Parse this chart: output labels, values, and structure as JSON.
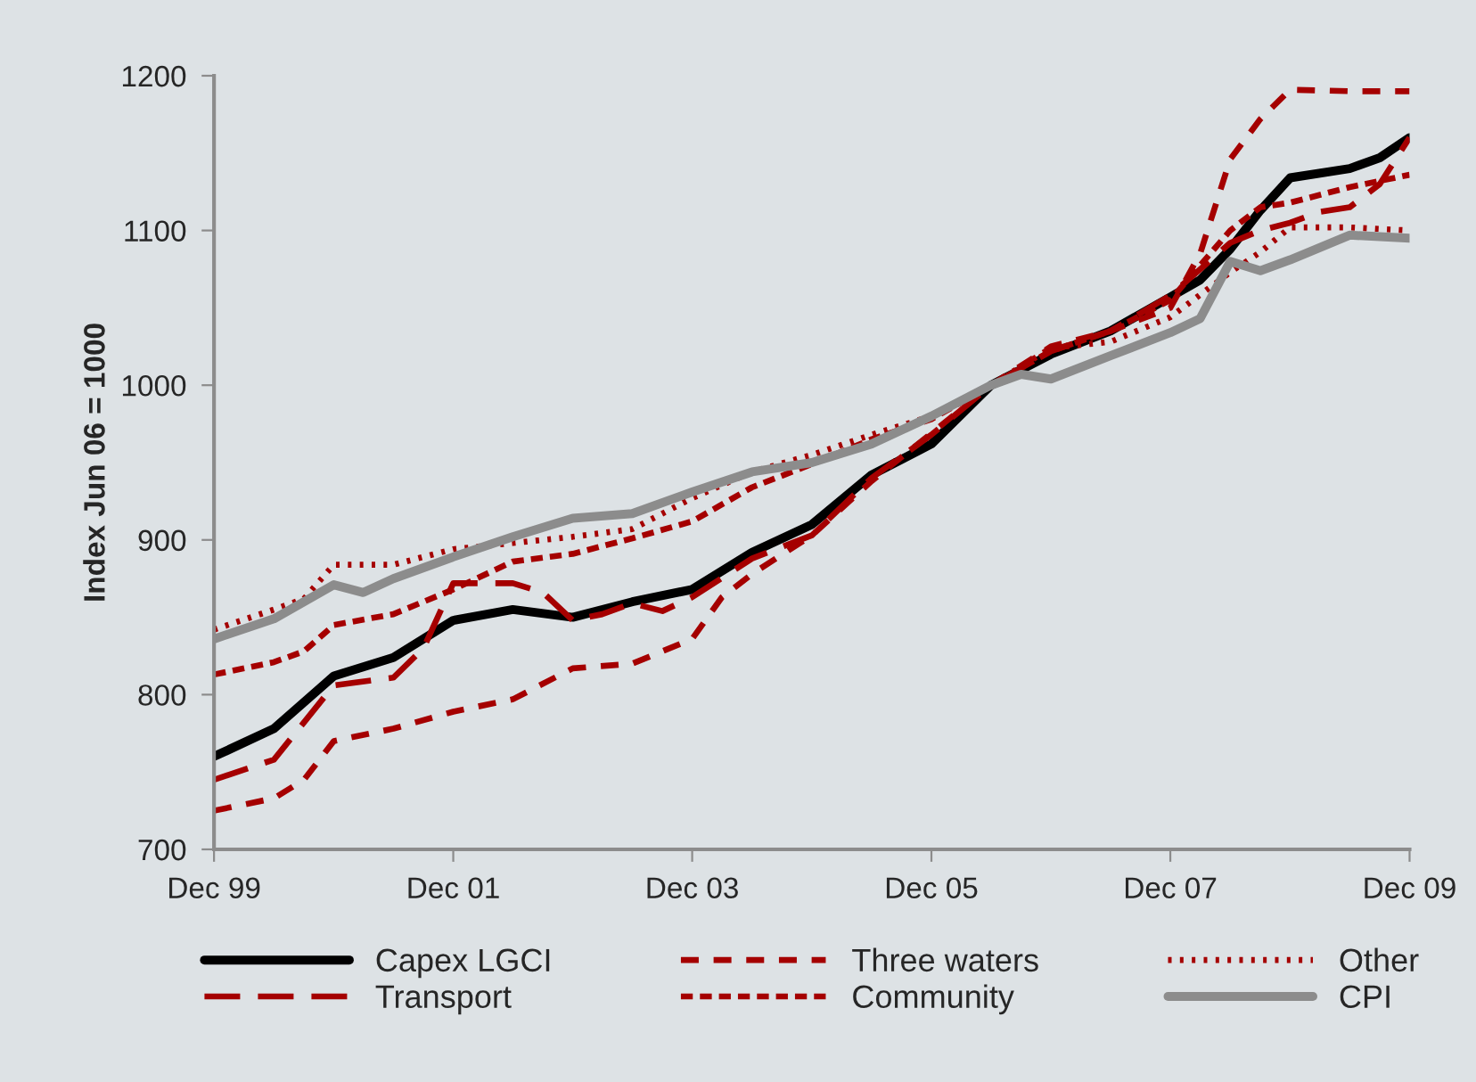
{
  "chart_data": {
    "type": "line",
    "ylabel": "Index Jun 06 = 1000",
    "xlim": [
      "1999-12",
      "2009-12"
    ],
    "xticks": [
      {
        "value": "1999-12",
        "label": "Dec 99"
      },
      {
        "value": "2001-12",
        "label": "Dec 01"
      },
      {
        "value": "2003-12",
        "label": "Dec 03"
      },
      {
        "value": "2005-12",
        "label": "Dec 05"
      },
      {
        "value": "2007-12",
        "label": "Dec 07"
      },
      {
        "value": "2009-12",
        "label": "Dec 09"
      }
    ],
    "ylim": [
      700,
      1200
    ],
    "yticks": [
      700,
      800,
      900,
      1000,
      1100,
      1200
    ],
    "grid": false,
    "legend": "bottom",
    "marker": "none",
    "series": [
      {
        "name": "Capex LGCI",
        "color": "#000000",
        "line_style": "solid",
        "x": [
          "1999-12",
          "2000-06",
          "2000-12",
          "2001-06",
          "2001-12",
          "2002-06",
          "2002-12",
          "2003-06",
          "2003-12",
          "2004-06",
          "2004-12",
          "2005-06",
          "2005-12",
          "2006-06",
          "2006-12",
          "2007-06",
          "2007-12",
          "2008-03",
          "2008-06",
          "2008-09",
          "2008-12",
          "2009-06",
          "2009-09",
          "2009-12"
        ],
        "values": [
          760,
          778,
          812,
          824,
          848,
          855,
          850,
          860,
          868,
          892,
          910,
          942,
          962,
          1000,
          1020,
          1035,
          1057,
          1068,
          1088,
          1113,
          1134,
          1140,
          1147,
          1160
        ]
      },
      {
        "name": "Transport",
        "color": "#a50000",
        "line_style": "dashed",
        "x": [
          "1999-12",
          "2000-06",
          "2000-12",
          "2001-06",
          "2001-09",
          "2001-12",
          "2002-06",
          "2002-09",
          "2002-12",
          "2003-03",
          "2003-06",
          "2003-09",
          "2003-12",
          "2004-06",
          "2004-12",
          "2005-06",
          "2005-12",
          "2006-06",
          "2006-12",
          "2007-06",
          "2007-12",
          "2008-06",
          "2008-09",
          "2008-12",
          "2009-03",
          "2009-06",
          "2009-09",
          "2009-12"
        ],
        "values": [
          745,
          758,
          806,
          811,
          830,
          872,
          872,
          866,
          848,
          852,
          859,
          854,
          863,
          888,
          903,
          940,
          968,
          1000,
          1022,
          1035,
          1058,
          1092,
          1100,
          1105,
          1112,
          1115,
          1130,
          1160
        ]
      },
      {
        "name": "Three waters",
        "color": "#a50000",
        "line_style": "dashed",
        "x": [
          "1999-12",
          "2000-06",
          "2000-09",
          "2000-12",
          "2001-06",
          "2001-12",
          "2002-06",
          "2002-12",
          "2003-06",
          "2003-12",
          "2004-03",
          "2004-06",
          "2004-12",
          "2005-06",
          "2005-12",
          "2006-06",
          "2006-12",
          "2007-06",
          "2007-12",
          "2008-03",
          "2008-06",
          "2008-09",
          "2008-12",
          "2009-06",
          "2009-12"
        ],
        "values": [
          725,
          733,
          745,
          770,
          778,
          789,
          797,
          817,
          820,
          836,
          863,
          878,
          903,
          938,
          969,
          1000,
          1025,
          1035,
          1050,
          1085,
          1146,
          1172,
          1191,
          1190,
          1190
        ]
      },
      {
        "name": "Community",
        "color": "#a50000",
        "line_style": "dashed",
        "x": [
          "1999-12",
          "2000-06",
          "2000-09",
          "2000-12",
          "2001-06",
          "2001-12",
          "2002-06",
          "2002-12",
          "2003-06",
          "2003-12",
          "2004-06",
          "2004-12",
          "2005-06",
          "2005-12",
          "2006-06",
          "2006-12",
          "2007-06",
          "2007-12",
          "2008-06",
          "2008-09",
          "2008-12",
          "2009-06",
          "2009-12"
        ],
        "values": [
          813,
          821,
          828,
          845,
          852,
          868,
          886,
          891,
          901,
          912,
          934,
          949,
          965,
          978,
          1000,
          1022,
          1035,
          1055,
          1100,
          1115,
          1118,
          1128,
          1136
        ]
      },
      {
        "name": "Other",
        "color": "#a50000",
        "line_style": "dotted",
        "x": [
          "1999-12",
          "2000-06",
          "2000-09",
          "2000-12",
          "2001-06",
          "2001-12",
          "2002-06",
          "2002-12",
          "2003-06",
          "2003-12",
          "2004-06",
          "2004-12",
          "2005-06",
          "2005-12",
          "2006-06",
          "2006-12",
          "2007-06",
          "2007-12",
          "2008-06",
          "2008-09",
          "2008-12",
          "2009-06",
          "2009-12"
        ],
        "values": [
          842,
          855,
          862,
          884,
          884,
          894,
          898,
          902,
          907,
          927,
          944,
          955,
          968,
          980,
          1000,
          1024,
          1028,
          1044,
          1073,
          1086,
          1102,
          1102,
          1100
        ]
      },
      {
        "name": "CPI",
        "color": "#8c8c8c",
        "line_style": "solid",
        "x": [
          "1999-12",
          "2000-06",
          "2000-12",
          "2001-03",
          "2001-06",
          "2001-12",
          "2002-06",
          "2002-12",
          "2003-06",
          "2003-12",
          "2004-06",
          "2004-12",
          "2005-06",
          "2005-12",
          "2006-06",
          "2006-09",
          "2006-12",
          "2007-06",
          "2007-12",
          "2008-03",
          "2008-06",
          "2008-09",
          "2008-12",
          "2009-06",
          "2009-12"
        ],
        "values": [
          836,
          849,
          871,
          866,
          875,
          889,
          902,
          914,
          917,
          931,
          944,
          950,
          962,
          980,
          1000,
          1007,
          1004,
          1019,
          1034,
          1043,
          1080,
          1074,
          1081,
          1097,
          1095
        ]
      }
    ]
  }
}
